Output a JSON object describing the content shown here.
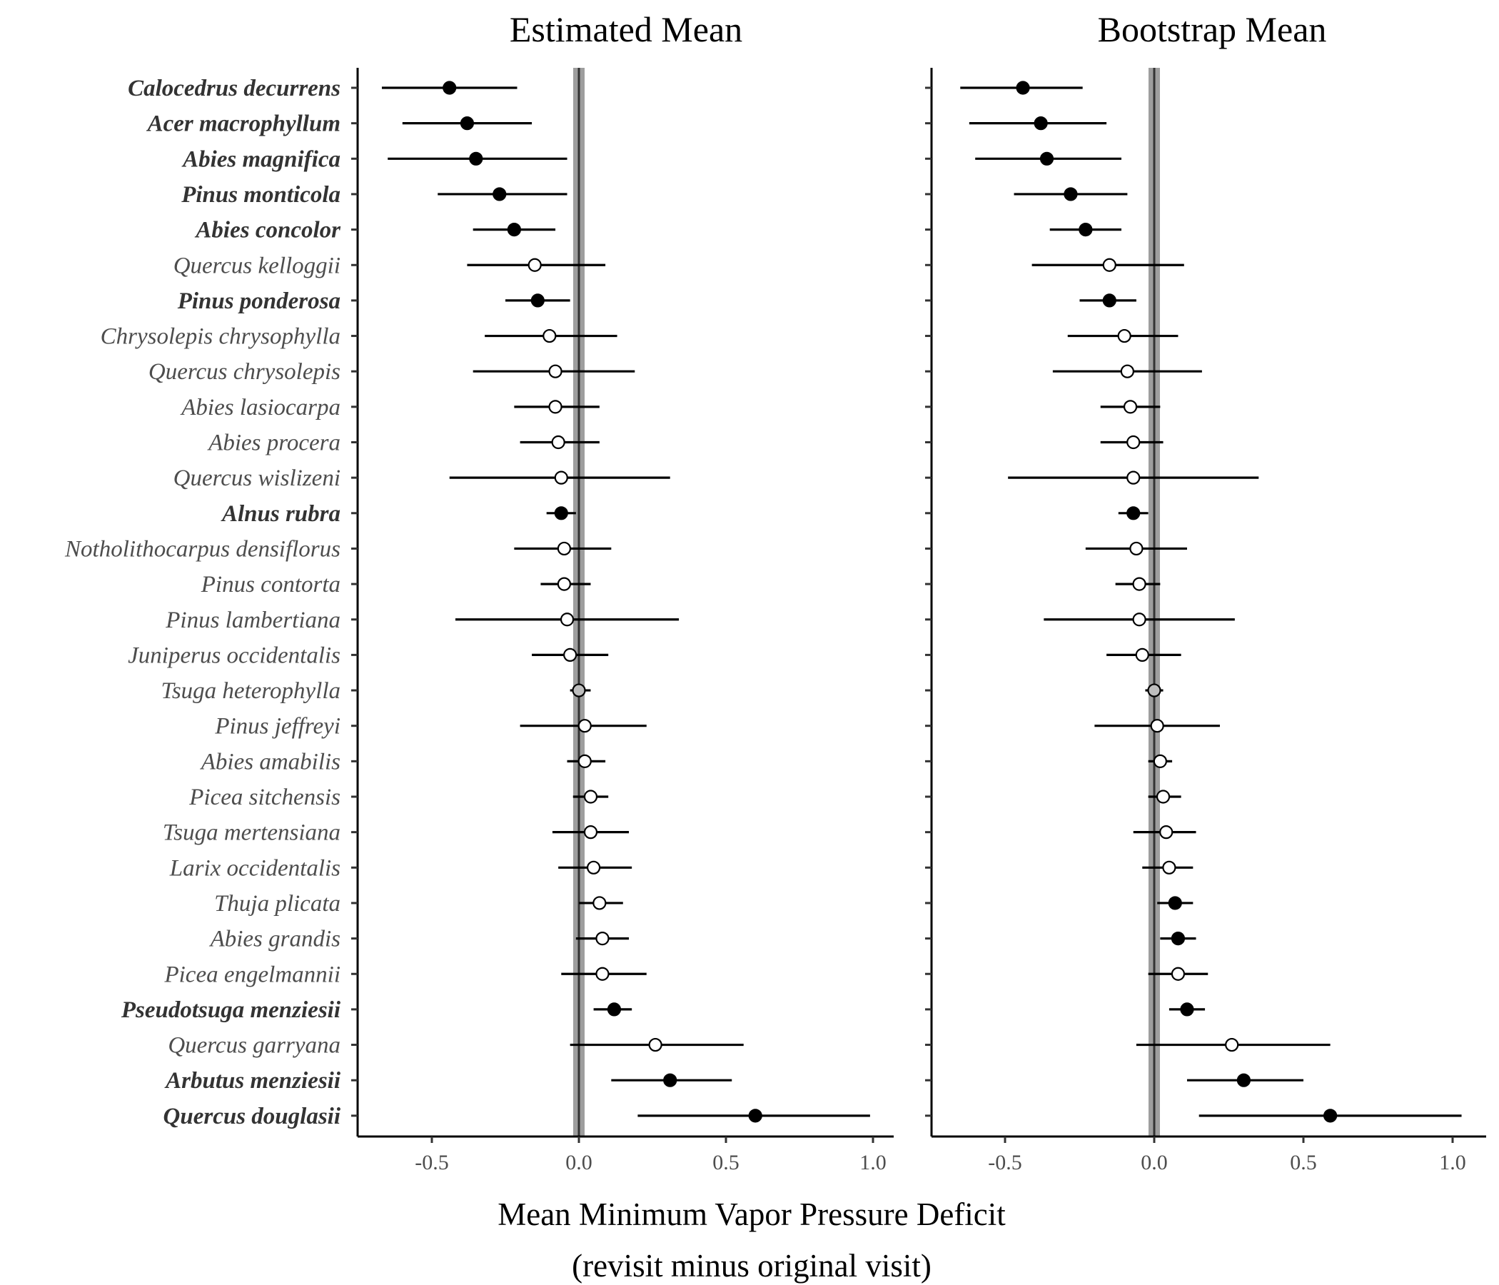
{
  "chart_data": {
    "type": "scatter",
    "xlabel": "Mean Minimum Vapor Pressure Deficit",
    "xlabel_line2": "(revisit minus original visit)",
    "xlim": [
      -0.75,
      1.07
    ],
    "xticks": [
      -0.5,
      0.0,
      0.5,
      1.0
    ],
    "xtick_labels": [
      "-0.5",
      "0.0",
      "0.5",
      "1.0"
    ],
    "reference_line": 0,
    "grid": false,
    "species": [
      {
        "name": "Calocedrus  decurrens",
        "significant": true
      },
      {
        "name": "Acer macrophyllum",
        "significant": true
      },
      {
        "name": "Abies magnifica",
        "significant": true
      },
      {
        "name": "Pinus monticola",
        "significant": true
      },
      {
        "name": "Abies concolor",
        "significant": true
      },
      {
        "name": "Quercus kelloggii",
        "significant": false
      },
      {
        "name": "Pinus ponderosa",
        "significant": true
      },
      {
        "name": "Chrysolepis  chrysophylla",
        "significant": false
      },
      {
        "name": "Quercus chrysolepis",
        "significant": false
      },
      {
        "name": "Abies lasiocarpa",
        "significant": false
      },
      {
        "name": "Abies procera",
        "significant": false
      },
      {
        "name": "Quercus wislizeni",
        "significant": false
      },
      {
        "name": "Alnus rubra",
        "significant": true
      },
      {
        "name": "Notholithocarpus  densiflorus",
        "significant": false
      },
      {
        "name": "Pinus  contorta",
        "significant": false
      },
      {
        "name": "Pinus lambertiana",
        "significant": false
      },
      {
        "name": "Juniperus  occidentalis",
        "significant": false
      },
      {
        "name": "Tsuga heterophylla",
        "significant": false
      },
      {
        "name": "Pinus jeffreyi",
        "significant": false
      },
      {
        "name": "Abies amabilis",
        "significant": false
      },
      {
        "name": "Picea sitchensis",
        "significant": false
      },
      {
        "name": "Tsuga mertensiana",
        "significant": false
      },
      {
        "name": "Larix occidentalis",
        "significant": false
      },
      {
        "name": "Thuja plicata",
        "significant": false
      },
      {
        "name": "Abies grandis",
        "significant": false
      },
      {
        "name": "Picea engelmannii",
        "significant": false
      },
      {
        "name": "Pseudotsuga  menziesii",
        "significant": true
      },
      {
        "name": "Quercus garryana",
        "significant": false
      },
      {
        "name": "Arbutus menziesii",
        "significant": true
      },
      {
        "name": "Quercus douglasii",
        "significant": true
      }
    ],
    "panels": [
      {
        "title": "Estimated Mean",
        "points": [
          {
            "mean": -0.44,
            "lo": -0.67,
            "hi": -0.21,
            "fill": "black"
          },
          {
            "mean": -0.38,
            "lo": -0.6,
            "hi": -0.16,
            "fill": "black"
          },
          {
            "mean": -0.35,
            "lo": -0.65,
            "hi": -0.04,
            "fill": "black"
          },
          {
            "mean": -0.27,
            "lo": -0.48,
            "hi": -0.04,
            "fill": "black"
          },
          {
            "mean": -0.22,
            "lo": -0.36,
            "hi": -0.08,
            "fill": "black"
          },
          {
            "mean": -0.15,
            "lo": -0.38,
            "hi": 0.09,
            "fill": "white"
          },
          {
            "mean": -0.14,
            "lo": -0.25,
            "hi": -0.03,
            "fill": "black"
          },
          {
            "mean": -0.1,
            "lo": -0.32,
            "hi": 0.13,
            "fill": "white"
          },
          {
            "mean": -0.08,
            "lo": -0.36,
            "hi": 0.19,
            "fill": "white"
          },
          {
            "mean": -0.08,
            "lo": -0.22,
            "hi": 0.07,
            "fill": "white"
          },
          {
            "mean": -0.07,
            "lo": -0.2,
            "hi": 0.07,
            "fill": "white"
          },
          {
            "mean": -0.06,
            "lo": -0.44,
            "hi": 0.31,
            "fill": "white"
          },
          {
            "mean": -0.06,
            "lo": -0.11,
            "hi": -0.01,
            "fill": "black"
          },
          {
            "mean": -0.05,
            "lo": -0.22,
            "hi": 0.11,
            "fill": "white"
          },
          {
            "mean": -0.05,
            "lo": -0.13,
            "hi": 0.04,
            "fill": "white"
          },
          {
            "mean": -0.04,
            "lo": -0.42,
            "hi": 0.34,
            "fill": "white"
          },
          {
            "mean": -0.03,
            "lo": -0.16,
            "hi": 0.1,
            "fill": "white"
          },
          {
            "mean": 0.0,
            "lo": -0.03,
            "hi": 0.04,
            "fill": "gray"
          },
          {
            "mean": 0.02,
            "lo": -0.2,
            "hi": 0.23,
            "fill": "white"
          },
          {
            "mean": 0.02,
            "lo": -0.04,
            "hi": 0.09,
            "fill": "white"
          },
          {
            "mean": 0.04,
            "lo": -0.02,
            "hi": 0.1,
            "fill": "white"
          },
          {
            "mean": 0.04,
            "lo": -0.09,
            "hi": 0.17,
            "fill": "white"
          },
          {
            "mean": 0.05,
            "lo": -0.07,
            "hi": 0.18,
            "fill": "white"
          },
          {
            "mean": 0.07,
            "lo": 0.0,
            "hi": 0.15,
            "fill": "white"
          },
          {
            "mean": 0.08,
            "lo": -0.01,
            "hi": 0.17,
            "fill": "white"
          },
          {
            "mean": 0.08,
            "lo": -0.06,
            "hi": 0.23,
            "fill": "white"
          },
          {
            "mean": 0.12,
            "lo": 0.05,
            "hi": 0.18,
            "fill": "black"
          },
          {
            "mean": 0.26,
            "lo": -0.03,
            "hi": 0.56,
            "fill": "white"
          },
          {
            "mean": 0.31,
            "lo": 0.11,
            "hi": 0.52,
            "fill": "black"
          },
          {
            "mean": 0.6,
            "lo": 0.2,
            "hi": 0.99,
            "fill": "black"
          }
        ]
      },
      {
        "title": "Bootstrap Mean",
        "points": [
          {
            "mean": -0.44,
            "lo": -0.65,
            "hi": -0.24,
            "fill": "black"
          },
          {
            "mean": -0.38,
            "lo": -0.62,
            "hi": -0.16,
            "fill": "black"
          },
          {
            "mean": -0.36,
            "lo": -0.6,
            "hi": -0.11,
            "fill": "black"
          },
          {
            "mean": -0.28,
            "lo": -0.47,
            "hi": -0.09,
            "fill": "black"
          },
          {
            "mean": -0.23,
            "lo": -0.35,
            "hi": -0.11,
            "fill": "black"
          },
          {
            "mean": -0.15,
            "lo": -0.41,
            "hi": 0.1,
            "fill": "white"
          },
          {
            "mean": -0.15,
            "lo": -0.25,
            "hi": -0.06,
            "fill": "black"
          },
          {
            "mean": -0.1,
            "lo": -0.29,
            "hi": 0.08,
            "fill": "white"
          },
          {
            "mean": -0.09,
            "lo": -0.34,
            "hi": 0.16,
            "fill": "white"
          },
          {
            "mean": -0.08,
            "lo": -0.18,
            "hi": 0.02,
            "fill": "white"
          },
          {
            "mean": -0.07,
            "lo": -0.18,
            "hi": 0.03,
            "fill": "white"
          },
          {
            "mean": -0.07,
            "lo": -0.49,
            "hi": 0.35,
            "fill": "white"
          },
          {
            "mean": -0.07,
            "lo": -0.12,
            "hi": -0.02,
            "fill": "black"
          },
          {
            "mean": -0.06,
            "lo": -0.23,
            "hi": 0.11,
            "fill": "white"
          },
          {
            "mean": -0.05,
            "lo": -0.13,
            "hi": 0.02,
            "fill": "white"
          },
          {
            "mean": -0.05,
            "lo": -0.37,
            "hi": 0.27,
            "fill": "white"
          },
          {
            "mean": -0.04,
            "lo": -0.16,
            "hi": 0.09,
            "fill": "white"
          },
          {
            "mean": 0.0,
            "lo": -0.03,
            "hi": 0.03,
            "fill": "gray"
          },
          {
            "mean": 0.01,
            "lo": -0.2,
            "hi": 0.22,
            "fill": "white"
          },
          {
            "mean": 0.02,
            "lo": -0.02,
            "hi": 0.06,
            "fill": "white"
          },
          {
            "mean": 0.03,
            "lo": -0.02,
            "hi": 0.09,
            "fill": "white"
          },
          {
            "mean": 0.04,
            "lo": -0.07,
            "hi": 0.14,
            "fill": "white"
          },
          {
            "mean": 0.05,
            "lo": -0.04,
            "hi": 0.13,
            "fill": "white"
          },
          {
            "mean": 0.07,
            "lo": 0.01,
            "hi": 0.13,
            "fill": "black"
          },
          {
            "mean": 0.08,
            "lo": 0.02,
            "hi": 0.14,
            "fill": "black"
          },
          {
            "mean": 0.08,
            "lo": -0.02,
            "hi": 0.18,
            "fill": "white"
          },
          {
            "mean": 0.11,
            "lo": 0.05,
            "hi": 0.17,
            "fill": "black"
          },
          {
            "mean": 0.26,
            "lo": -0.06,
            "hi": 0.59,
            "fill": "white"
          },
          {
            "mean": 0.3,
            "lo": 0.11,
            "hi": 0.5,
            "fill": "black"
          },
          {
            "mean": 0.59,
            "lo": 0.15,
            "hi": 1.03,
            "fill": "black"
          }
        ]
      }
    ]
  },
  "colors": {
    "sig_fill": "#000000",
    "nonsig_fill": "#ffffff",
    "zero_fill": "#bdbdbd",
    "ref_band": "#9e9e9e",
    "ref_line": "#333333",
    "species_text": "#4d4d4d",
    "species_sig_text": "#333333",
    "axis": "#000000"
  }
}
